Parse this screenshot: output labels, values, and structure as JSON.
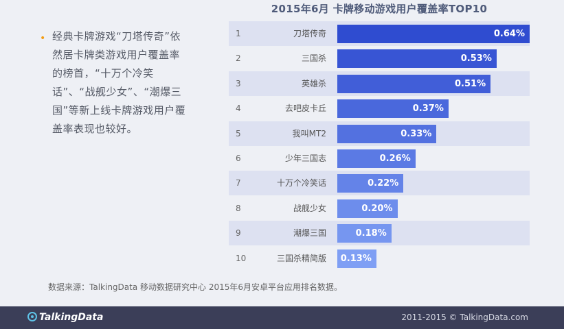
{
  "sidebar": {
    "bullet_text": "经典卡牌游戏“刀塔传奇”依然居卡牌类游戏用户覆盖率的榜首，“十万个冷笑话”、“战舰少女”、“潮爆三国”等新上线卡牌游戏用户覆盖率表现也较好。"
  },
  "chart_data": {
    "type": "bar",
    "orientation": "horizontal",
    "title": "2015年6月 卡牌移动游戏用户覆盖率TOP10",
    "ranks": [
      "1",
      "2",
      "3",
      "4",
      "5",
      "6",
      "7",
      "8",
      "9",
      "10"
    ],
    "categories": [
      "刀塔传奇",
      "三国杀",
      "英雄杀",
      "去吧皮卡丘",
      "我叫MT2",
      "少年三国志",
      "十万个冷笑话",
      "战舰少女",
      "潮爆三国",
      "三国杀精简版"
    ],
    "values": [
      0.64,
      0.53,
      0.51,
      0.37,
      0.33,
      0.26,
      0.22,
      0.2,
      0.18,
      0.13
    ],
    "value_labels": [
      "0.64%",
      "0.53%",
      "0.51%",
      "0.37%",
      "0.33%",
      "0.26%",
      "0.22%",
      "0.20%",
      "0.18%",
      "0.13%"
    ],
    "unit": "%",
    "xlim": [
      0,
      0.64
    ]
  },
  "colors": {
    "bar_dark": "#2f4cd0",
    "bar_light": "#7f9ff4",
    "row_shade": "#dde1f1",
    "accent": "#f39c12"
  },
  "source_note": "数据来源：TalkingData 移动数据研究中心 2015年6月安卓平台应用排名数据。",
  "footer": {
    "logo": "TalkingData",
    "copyright": "2011-2015 © TalkingData.com"
  }
}
